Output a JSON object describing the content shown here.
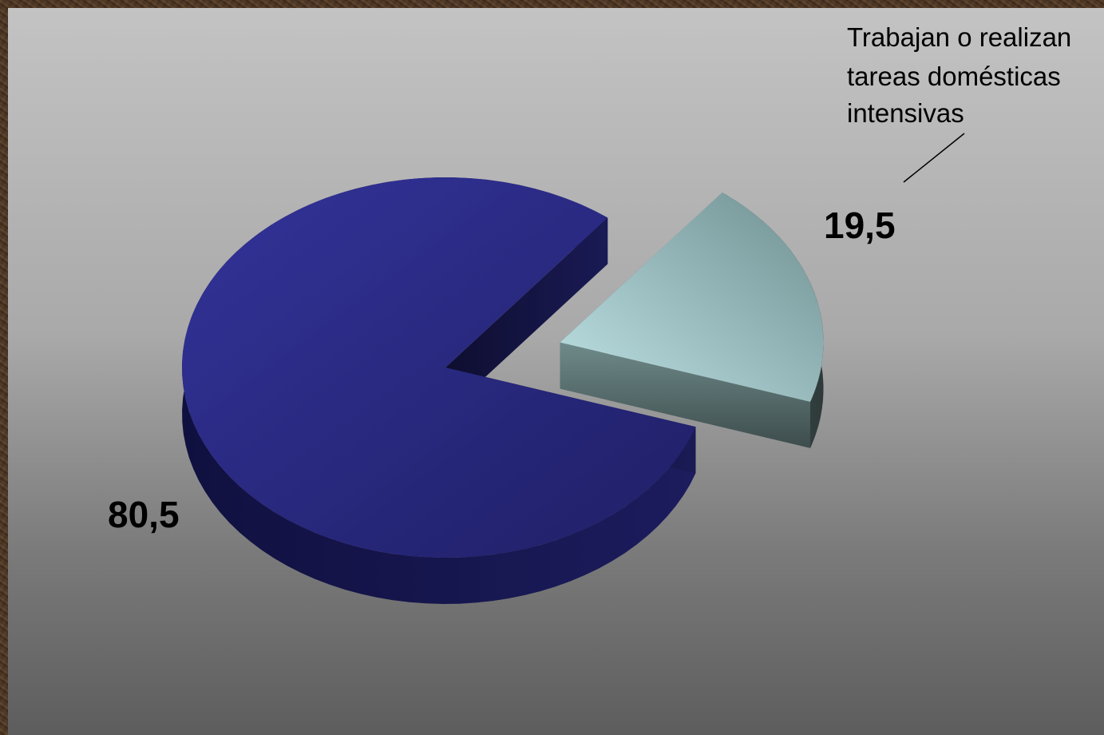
{
  "chart_data": {
    "type": "pie",
    "style": "3d-exploded",
    "slices": [
      {
        "label": "",
        "value": 80.5,
        "value_label": "80,5",
        "color": "#2c2c8a"
      },
      {
        "label_lines": [
          "Trabajan o realizan",
          "tareas domésticas",
          "intensivas"
        ],
        "value": 19.5,
        "value_label": "19,5",
        "color": "#9cc2c4"
      }
    ],
    "legend": "none",
    "grid": false
  }
}
